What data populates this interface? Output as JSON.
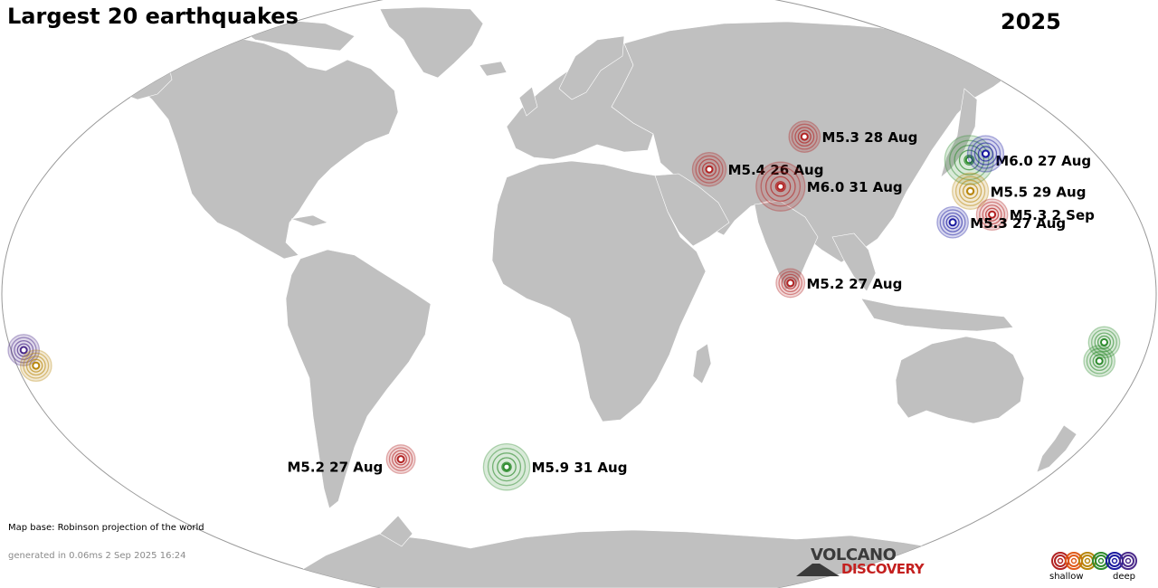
{
  "map": {
    "title": "Largest 20 earthquakes",
    "year": "2025",
    "projection_credit": "Map base: Robinson projection of the world",
    "generated": "generated in 0.06ms  2 Sep 2025 16:24",
    "colors": {
      "ocean": "#ffffff",
      "land": "#c0c0c0",
      "border": "#ffffff",
      "outline": "#999999"
    }
  },
  "earthquakes": [
    {
      "label": "M5.4 26 Aug",
      "lat": 40.0,
      "lon": 47.5,
      "magnitude": 5.4,
      "color": "#b22222"
    },
    {
      "label": "M5.3 28 Aug",
      "lat": 50.5,
      "lon": 91.0,
      "magnitude": 5.3,
      "color": "#b22222"
    },
    {
      "label": "M6.0 31 Aug",
      "lat": 34.5,
      "lon": 70.5,
      "magnitude": 6.0,
      "color": "#b22222"
    },
    {
      "label": "M6.0 27 Aug",
      "lat": 43.0,
      "lon": 146.0,
      "magnitude": 6.0,
      "color": "#2e8b2e"
    },
    {
      "label": "",
      "lat": 45.0,
      "lon": 155.0,
      "magnitude": 5.5,
      "color": "#1a1aa0"
    },
    {
      "label": "M5.5 29 Aug",
      "lat": 33.0,
      "lon": 135.5,
      "magnitude": 5.5,
      "color": "#b8860b"
    },
    {
      "label": "M5.3  2 Sep",
      "lat": 25.5,
      "lon": 137.0,
      "magnitude": 5.3,
      "color": "#b22222"
    },
    {
      "label": "M5.3 27 Aug",
      "lat": 23.0,
      "lon": 122.5,
      "magnitude": 5.3,
      "color": "#1a1aa0"
    },
    {
      "label": "M5.2 27 Aug",
      "lat": 3.5,
      "lon": 66.0,
      "magnitude": 5.2,
      "color": "#b22222"
    },
    {
      "label": "",
      "lat": -15.5,
      "lon": 167.5,
      "magnitude": 5.3,
      "color": "#2e8b2e"
    },
    {
      "label": "",
      "lat": -21.5,
      "lon": 169.5,
      "magnitude": 5.3,
      "color": "#2e8b2e"
    },
    {
      "label": "",
      "lat": -18.0,
      "lon": -178.5,
      "magnitude": 5.3,
      "color": "#4b2a8a"
    },
    {
      "label": "",
      "lat": -23.0,
      "lon": -178.0,
      "magnitude": 5.3,
      "color": "#b8860b"
    },
    {
      "label": "M5.2 27 Aug",
      "lat": -53.0,
      "lon": -74.0,
      "magnitude": 5.2,
      "color": "#b22222"
    },
    {
      "label": "M5.9 31 Aug",
      "lat": -55.5,
      "lon": -31.0,
      "magnitude": 5.9,
      "color": "#2e8b2e"
    }
  ],
  "logo": {
    "line1": "VOLCANO",
    "line2": "DISCOVERY"
  },
  "legend": {
    "shallow": "shallow",
    "deep": "deep",
    "colors": [
      "#b22222",
      "#e05a1a",
      "#b8860b",
      "#2e8b2e",
      "#1a1aa0",
      "#4b2a8a"
    ]
  }
}
